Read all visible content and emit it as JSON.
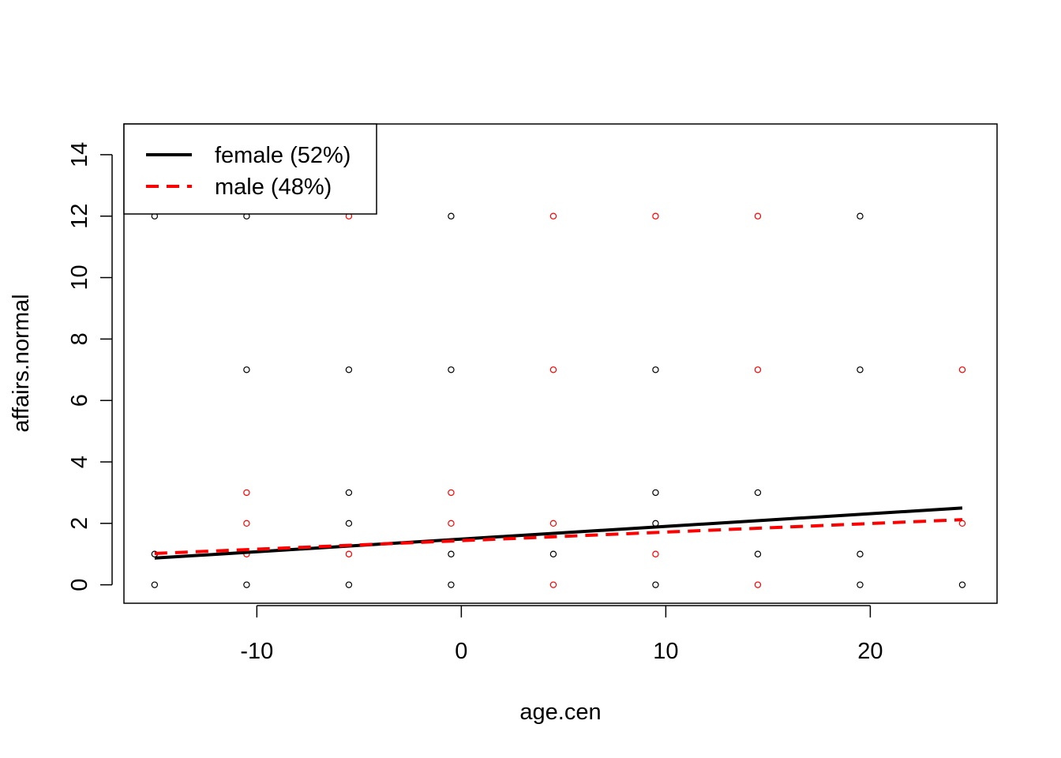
{
  "chart_data": {
    "type": "scatter",
    "title": "",
    "xlabel": "age.cen",
    "ylabel": "affairs.normal",
    "xlim": [
      -16.5,
      26.2
    ],
    "ylim": [
      -0.6,
      15
    ],
    "x_ticks": [
      -10,
      0,
      10,
      20
    ],
    "y_ticks": [
      0,
      2,
      4,
      6,
      8,
      10,
      12,
      14
    ],
    "x_tick_labels": [
      "-10",
      "0",
      "10",
      "20"
    ],
    "y_tick_labels": [
      "0",
      "2",
      "4",
      "6",
      "8",
      "10",
      "12",
      "14"
    ],
    "legend_position": "top-left",
    "legend": [
      {
        "label": "female (52%)",
        "color": "#000000",
        "line_style": "solid"
      },
      {
        "label": "male (48%)",
        "color": "#ff0000",
        "line_style": "dashed"
      }
    ],
    "points": [
      {
        "x": -15,
        "y": 12,
        "group": "female"
      },
      {
        "x": -10.5,
        "y": 12,
        "group": "female"
      },
      {
        "x": -5.5,
        "y": 12,
        "group": "male"
      },
      {
        "x": -0.5,
        "y": 12,
        "group": "female"
      },
      {
        "x": 4.5,
        "y": 12,
        "group": "male"
      },
      {
        "x": 9.5,
        "y": 12,
        "group": "male"
      },
      {
        "x": 14.5,
        "y": 12,
        "group": "male"
      },
      {
        "x": 19.5,
        "y": 12,
        "group": "female"
      },
      {
        "x": -10.5,
        "y": 7,
        "group": "female"
      },
      {
        "x": -5.5,
        "y": 7,
        "group": "female"
      },
      {
        "x": -0.5,
        "y": 7,
        "group": "female"
      },
      {
        "x": 4.5,
        "y": 7,
        "group": "male"
      },
      {
        "x": 9.5,
        "y": 7,
        "group": "female"
      },
      {
        "x": 14.5,
        "y": 7,
        "group": "male"
      },
      {
        "x": 19.5,
        "y": 7,
        "group": "female"
      },
      {
        "x": 24.5,
        "y": 7,
        "group": "male"
      },
      {
        "x": -10.5,
        "y": 3,
        "group": "male"
      },
      {
        "x": -5.5,
        "y": 3,
        "group": "female"
      },
      {
        "x": -0.5,
        "y": 3,
        "group": "male"
      },
      {
        "x": 9.5,
        "y": 3,
        "group": "female"
      },
      {
        "x": 14.5,
        "y": 3,
        "group": "female"
      },
      {
        "x": -10.5,
        "y": 2,
        "group": "male"
      },
      {
        "x": -5.5,
        "y": 2,
        "group": "female"
      },
      {
        "x": -0.5,
        "y": 2,
        "group": "male"
      },
      {
        "x": 4.5,
        "y": 2,
        "group": "male"
      },
      {
        "x": 9.5,
        "y": 2,
        "group": "female"
      },
      {
        "x": 24.5,
        "y": 2,
        "group": "male"
      },
      {
        "x": -15,
        "y": 1,
        "group": "female"
      },
      {
        "x": -10.5,
        "y": 1,
        "group": "male"
      },
      {
        "x": -5.5,
        "y": 1,
        "group": "male"
      },
      {
        "x": -0.5,
        "y": 1,
        "group": "female"
      },
      {
        "x": 4.5,
        "y": 1,
        "group": "female"
      },
      {
        "x": 9.5,
        "y": 1,
        "group": "male"
      },
      {
        "x": 14.5,
        "y": 1,
        "group": "female"
      },
      {
        "x": 19.5,
        "y": 1,
        "group": "female"
      },
      {
        "x": -15,
        "y": 0,
        "group": "female"
      },
      {
        "x": -10.5,
        "y": 0,
        "group": "female"
      },
      {
        "x": -5.5,
        "y": 0,
        "group": "female"
      },
      {
        "x": -0.5,
        "y": 0,
        "group": "female"
      },
      {
        "x": 4.5,
        "y": 0,
        "group": "male"
      },
      {
        "x": 9.5,
        "y": 0,
        "group": "female"
      },
      {
        "x": 14.5,
        "y": 0,
        "group": "male"
      },
      {
        "x": 19.5,
        "y": 0,
        "group": "female"
      },
      {
        "x": 24.5,
        "y": 0,
        "group": "female"
      }
    ],
    "lines": [
      {
        "group": "female",
        "x": [
          -15,
          24.5
        ],
        "y": [
          0.87,
          2.5
        ],
        "color": "#000000",
        "line_style": "solid"
      },
      {
        "group": "male",
        "x": [
          -15,
          24.5
        ],
        "y": [
          1.02,
          2.12
        ],
        "color": "#ff0000",
        "line_style": "dashed"
      }
    ],
    "group_colors": {
      "female": "#000000",
      "male": "#ff0000"
    }
  }
}
